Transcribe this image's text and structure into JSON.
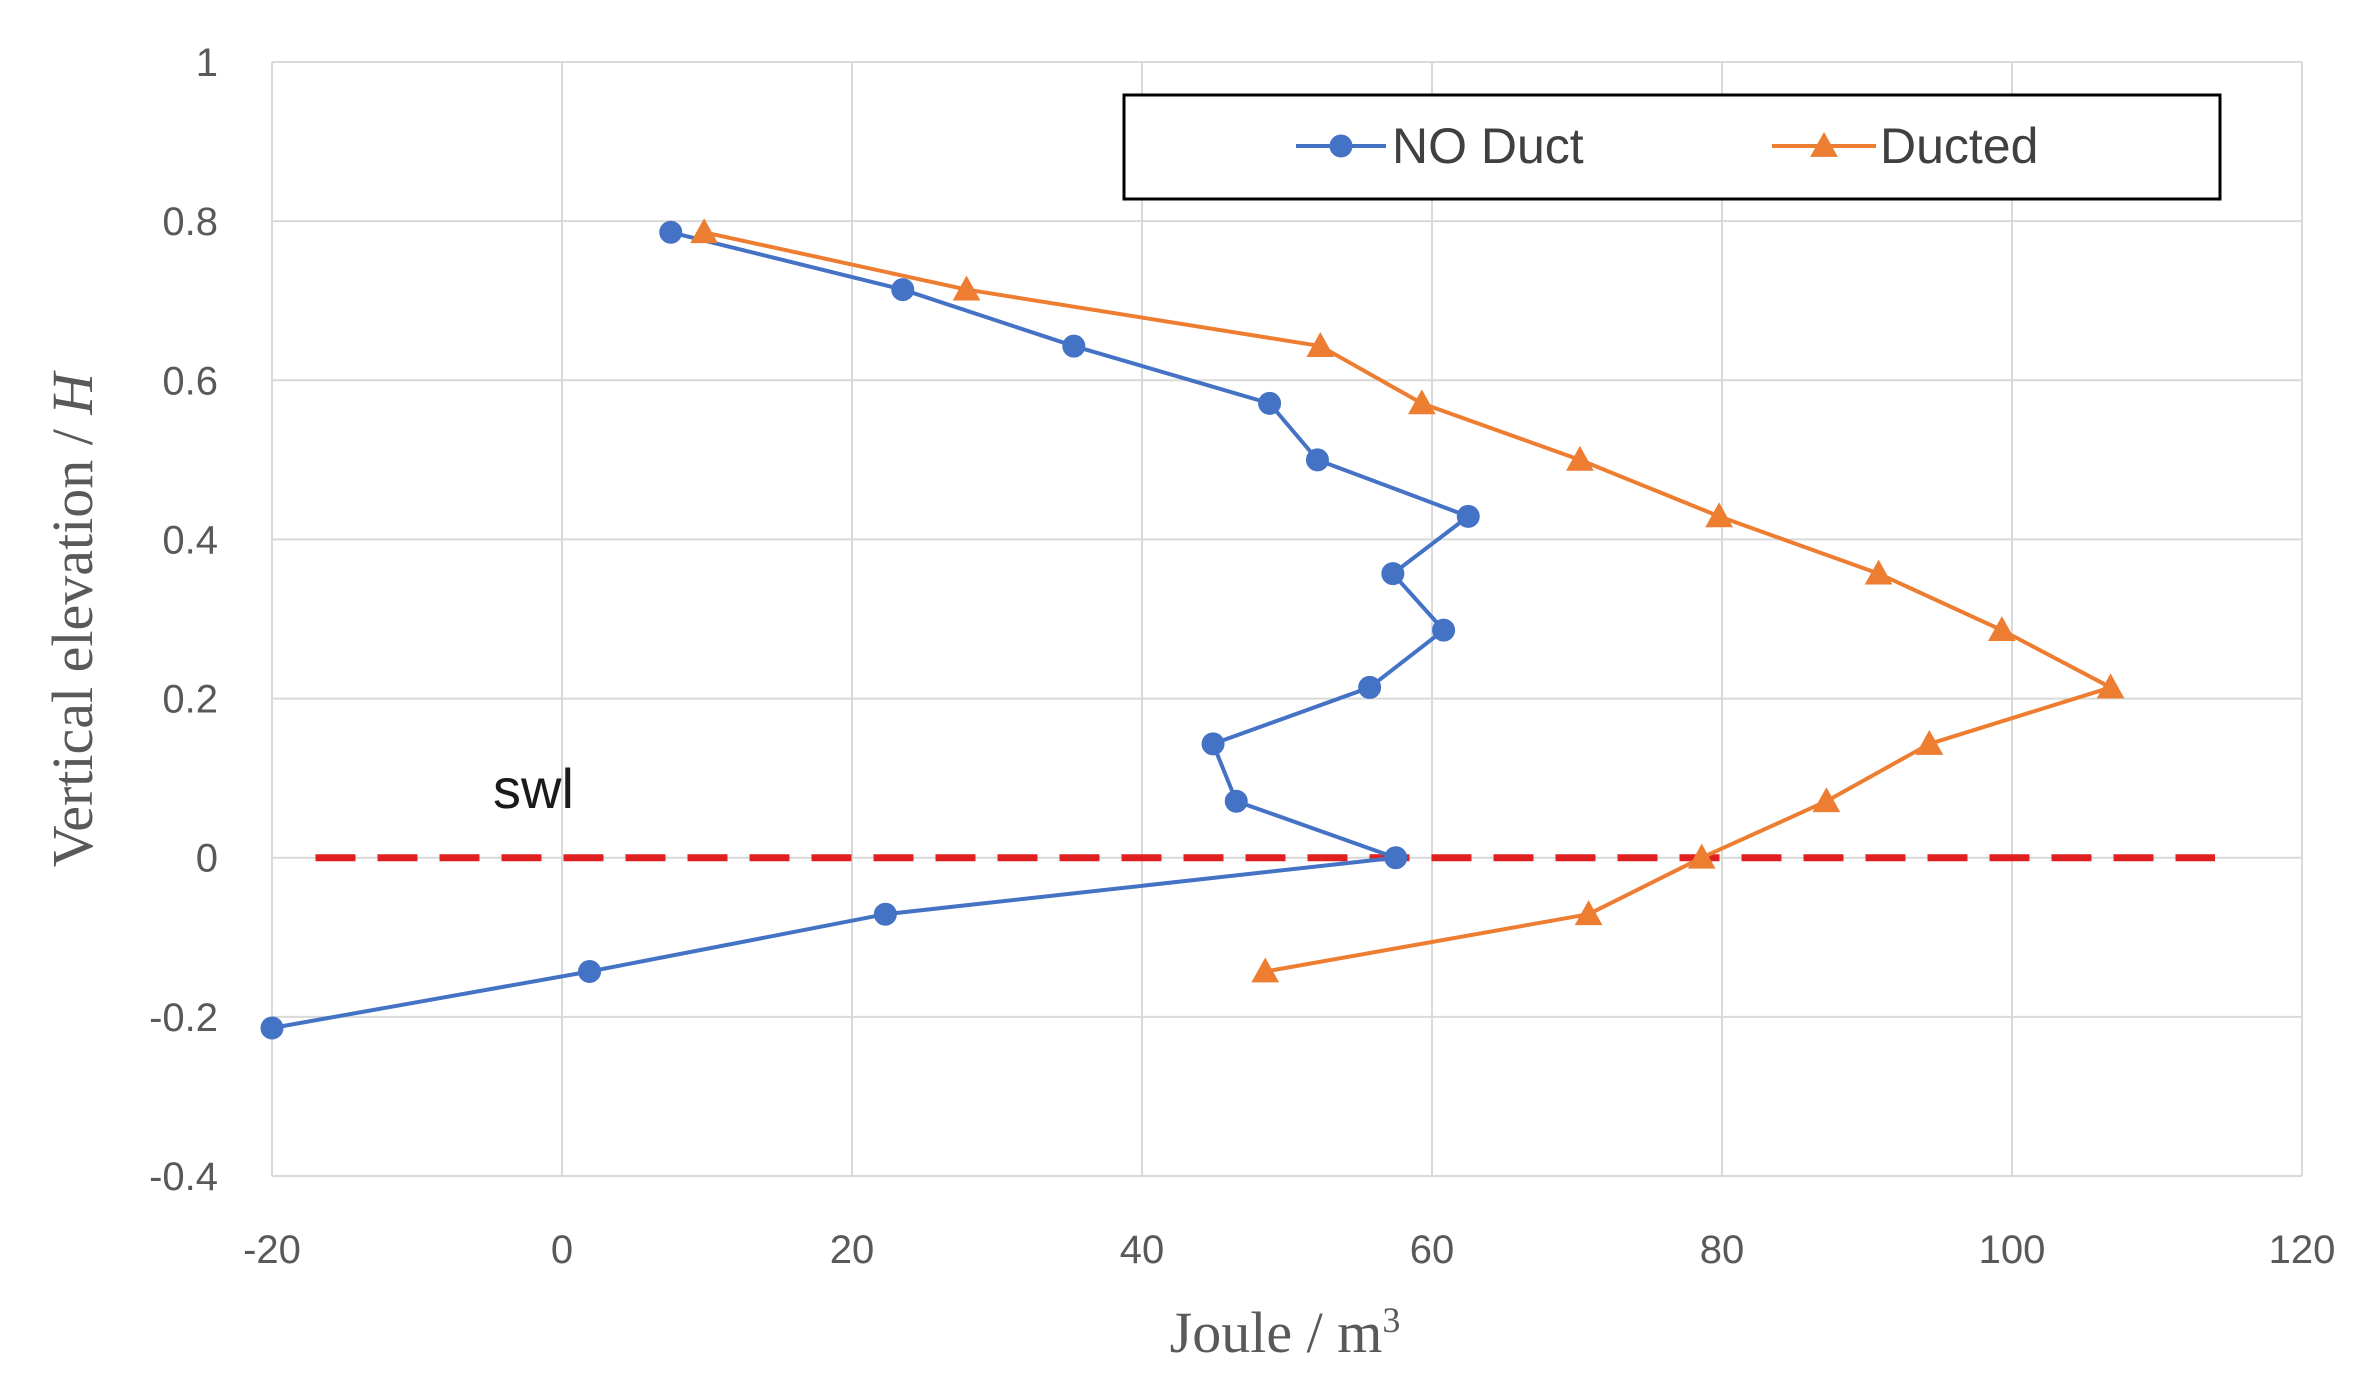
{
  "chart_data": {
    "type": "line",
    "title": "",
    "xlabel": "Joule / m",
    "xlabel_superscript": "3",
    "ylabel": "Vertical elevation / ",
    "ylabel_italic": "H",
    "xlim": [
      -20,
      120
    ],
    "ylim": [
      -0.4,
      1.0
    ],
    "x_ticks": [
      -20,
      0,
      20,
      40,
      60,
      80,
      100,
      120
    ],
    "y_ticks": [
      -0.4,
      -0.2,
      0,
      0.2,
      0.4,
      0.6,
      0.8,
      1
    ],
    "x_tick_labels": [
      "-20",
      "0",
      "20",
      "40",
      "60",
      "80",
      "100",
      "120"
    ],
    "y_tick_labels": [
      "-0.4",
      "-0.2",
      "0",
      "0.2",
      "0.4",
      "0.6",
      "0.8",
      "1"
    ],
    "grid": true,
    "legend_position": "top-right",
    "series": [
      {
        "name": "NO Duct",
        "color": "#4472C4",
        "marker": "circle",
        "points": [
          {
            "x": 7.5,
            "y": 0.786
          },
          {
            "x": 23.5,
            "y": 0.714
          },
          {
            "x": 35.3,
            "y": 0.643
          },
          {
            "x": 48.8,
            "y": 0.571
          },
          {
            "x": 52.1,
            "y": 0.5
          },
          {
            "x": 62.5,
            "y": 0.429
          },
          {
            "x": 57.3,
            "y": 0.357
          },
          {
            "x": 60.8,
            "y": 0.286
          },
          {
            "x": 55.7,
            "y": 0.214
          },
          {
            "x": 44.9,
            "y": 0.143
          },
          {
            "x": 46.5,
            "y": 0.071
          },
          {
            "x": 57.5,
            "y": 0.0
          },
          {
            "x": 22.3,
            "y": -0.071
          },
          {
            "x": 1.9,
            "y": -0.143
          },
          {
            "x": -20.0,
            "y": -0.214
          }
        ]
      },
      {
        "name": "Ducted",
        "color": "#ED7D31",
        "marker": "triangle",
        "points": [
          {
            "x": 9.8,
            "y": 0.786
          },
          {
            "x": 27.9,
            "y": 0.714
          },
          {
            "x": 52.3,
            "y": 0.643
          },
          {
            "x": 59.3,
            "y": 0.571
          },
          {
            "x": 70.2,
            "y": 0.5
          },
          {
            "x": 79.8,
            "y": 0.429
          },
          {
            "x": 90.8,
            "y": 0.357
          },
          {
            "x": 99.3,
            "y": 0.286
          },
          {
            "x": 106.8,
            "y": 0.214
          },
          {
            "x": 94.3,
            "y": 0.143
          },
          {
            "x": 87.2,
            "y": 0.071
          },
          {
            "x": 78.6,
            "y": 0.0
          },
          {
            "x": 70.8,
            "y": -0.071
          },
          {
            "x": 48.5,
            "y": -0.143
          }
        ]
      }
    ],
    "reference_line": {
      "label": "swl",
      "y": 0,
      "x_from": -17,
      "x_to": 114,
      "color": "#E02020",
      "style": "dashed"
    }
  }
}
